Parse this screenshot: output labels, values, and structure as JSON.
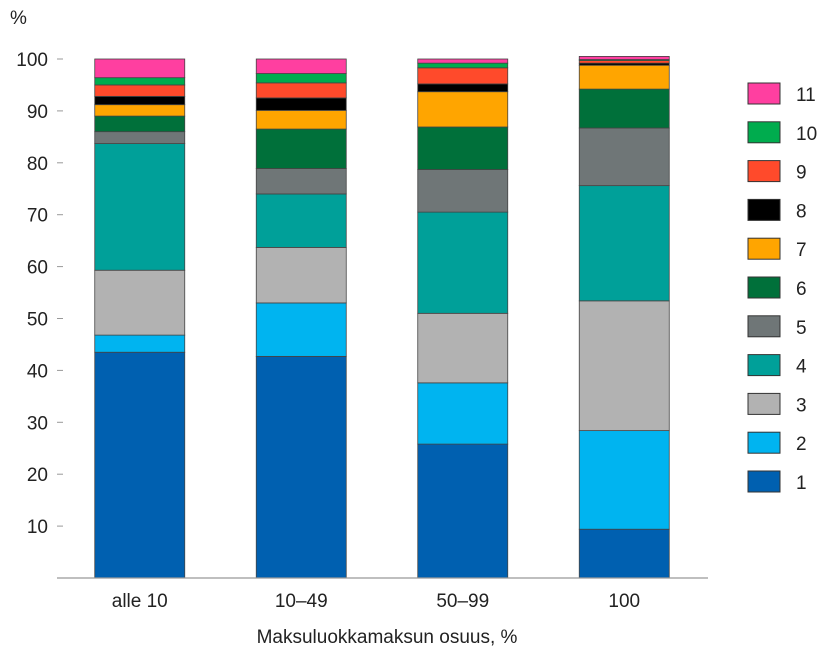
{
  "chart_data": {
    "type": "bar",
    "stacked": true,
    "ylabel": "%",
    "xlabel": "Maksuluokkamaksun osuus, %",
    "ylim": [
      0,
      100
    ],
    "yticks": [
      "10",
      "20",
      "30",
      "40",
      "50",
      "60",
      "70",
      "80",
      "90",
      "100"
    ],
    "categories": [
      "alle 10",
      "10–49",
      "50–99",
      "100"
    ],
    "legend_position": "right",
    "grid": false,
    "series": [
      {
        "name": "1",
        "color": "#0060b0",
        "values": [
          43.5,
          42.7,
          25.8,
          9.4
        ]
      },
      {
        "name": "2",
        "color": "#00b4f0",
        "values": [
          3.3,
          10.3,
          11.8,
          19.0
        ]
      },
      {
        "name": "3",
        "color": "#b2b2b2",
        "values": [
          12.5,
          10.7,
          13.4,
          25.0
        ]
      },
      {
        "name": "4",
        "color": "#00a099",
        "values": [
          24.4,
          10.3,
          19.5,
          22.2
        ]
      },
      {
        "name": "5",
        "color": "#6f7677",
        "values": [
          2.3,
          4.9,
          8.2,
          11.1
        ]
      },
      {
        "name": "6",
        "color": "#00703a",
        "values": [
          3.0,
          7.6,
          8.2,
          7.5
        ]
      },
      {
        "name": "7",
        "color": "#ffa500",
        "values": [
          2.2,
          3.6,
          6.8,
          4.6
        ]
      },
      {
        "name": "8",
        "color": "#000000",
        "values": [
          1.6,
          2.4,
          1.5,
          0.4
        ]
      },
      {
        "name": "9",
        "color": "#ff4a2b",
        "values": [
          2.2,
          2.9,
          3.1,
          0.5
        ]
      },
      {
        "name": "10",
        "color": "#00ac4e",
        "values": [
          1.4,
          1.8,
          0.9,
          0.2
        ]
      },
      {
        "name": "11",
        "color": "#ff3fa0",
        "values": [
          3.6,
          2.8,
          0.8,
          0.6
        ]
      }
    ]
  }
}
